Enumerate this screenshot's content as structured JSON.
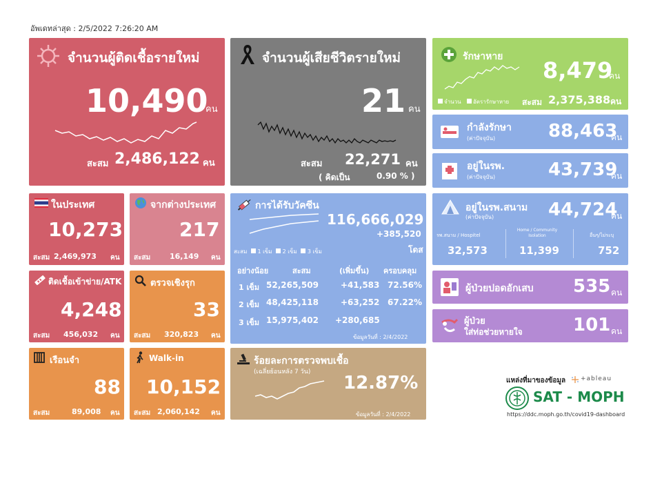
{
  "updated": "อัพเดทล่าสุด : 2/5/2022 7:26:20 AM",
  "new_cases": {
    "title": "จำนวนผู้ติดเชื้อรายใหม่",
    "value": "10,490",
    "unit": "คน",
    "cum_label": "สะสม",
    "cum_value": "2,486,122",
    "cum_unit": "คน"
  },
  "new_deaths": {
    "title": "จำนวนผู้เสียชีวิตรายใหม่",
    "value": "21",
    "unit": "คน",
    "cum_label": "สะสม",
    "cum_value": "22,271",
    "cum_unit": "คน",
    "rate_label": "( คิดเป็น",
    "rate_value": "0.90 % )"
  },
  "recovered": {
    "title": "รักษาหาย",
    "value": "8,479",
    "unit": "คน",
    "legend_count": "จำนวน",
    "legend_rate": "อัตรารักษาหาย",
    "cum_label": "สะสม",
    "cum_value": "2,375,388",
    "cum_unit": "คน"
  },
  "in_treatment": {
    "title": "กำลังรักษา",
    "sub": "(ค่าปัจจุบัน)",
    "value": "88,463",
    "unit": "คน"
  },
  "in_hospital": {
    "title": "อยู่ในรพ.",
    "sub": "(ค่าปัจจุบัน)",
    "value": "43,739",
    "unit": "คน"
  },
  "domestic": {
    "title": "ในประเทศ",
    "value": "10,273",
    "cum_label": "สะสม",
    "cum_value": "2,469,973",
    "cum_unit": "คน"
  },
  "abroad": {
    "title": "จากต่างประเทศ",
    "value": "217",
    "cum_label": "สะสม",
    "cum_value": "16,149",
    "cum_unit": "คน"
  },
  "vaccine": {
    "title": "การได้รับวัคซีน",
    "total": "116,666,029",
    "increase": "+385,520",
    "unit": "โดส",
    "legend_label": "สะสม",
    "legend_items": [
      "1 เข็ม",
      "2 เข็ม",
      "3 เข็ม"
    ],
    "headers": [
      "อย่างน้อย",
      "สะสม",
      "(เพิ่มขึ้น)",
      "ครอบคลุม"
    ],
    "rows": [
      [
        "1 เข็ม",
        "52,265,509",
        "+41,583",
        "72.56%"
      ],
      [
        "2 เข็ม",
        "48,425,118",
        "+63,252",
        "67.22%"
      ],
      [
        "3 เข็ม",
        "15,975,402",
        "+280,685",
        ""
      ]
    ],
    "data_date": "ข้อมูลวันที่ : 2/4/2022"
  },
  "field_hospital": {
    "title": "อยู่ในรพ.สนาม",
    "sub": "(ค่าปัจจุบัน)",
    "value": "44,724",
    "unit": "คน",
    "cols": [
      {
        "label": "รพ.สนาม / Hospitel",
        "value": "32,573"
      },
      {
        "label": "Home / Community Isolation",
        "value": "11,399"
      },
      {
        "label": "อื่นๆ/ไม่ระบุ",
        "value": "752"
      }
    ]
  },
  "prison_atk": {
    "title": "ติดเชื้อเข้าข่าย/ATK",
    "value": "4,248",
    "cum_label": "สะสม",
    "cum_value": "456,032",
    "cum_unit": "คน"
  },
  "active_search": {
    "title": "ตรวจเชิงรุก",
    "value": "33",
    "cum_label": "สะสม",
    "cum_value": "320,823",
    "cum_unit": "คน"
  },
  "pneumonia": {
    "title": "ผู้ป่วยปอดอักเสบ",
    "value": "535",
    "unit": "คน"
  },
  "ventilator": {
    "title1": "ผู้ป่วย",
    "title2": "ใส่ท่อช่วยหายใจ",
    "value": "101",
    "unit": "คน"
  },
  "prison": {
    "title": "เรือนจำ",
    "value": "88",
    "cum_label": "สะสม",
    "cum_value": "89,008",
    "cum_unit": "คน"
  },
  "walkin": {
    "title": "Walk-in",
    "value": "10,152",
    "cum_label": "สะสม",
    "cum_value": "2,060,142",
    "cum_unit": "คน"
  },
  "positivity": {
    "title": "ร้อยละการตรวจพบเชื้อ",
    "sub": "(เฉลี่ยย้อนหลัง 7 วัน)",
    "value": "12.87%",
    "data_date": "ข้อมูลวันที่ : 2/4/2022"
  },
  "source": {
    "label": "แหล่งที่มาของข้อมูล",
    "tableau": "+ableau",
    "brand": "SAT - MOPH",
    "url": "https://ddc.moph.go.th/covid19-dashboard"
  },
  "colors": {
    "red": "#d15e6a",
    "gray": "#7d7d7d",
    "green": "#a6d66a",
    "blue": "#8eaee6",
    "pink": "#d98490",
    "orange": "#e8944c",
    "tan": "#c5a882",
    "purple": "#b48ad4",
    "violet": "#9478cc"
  }
}
